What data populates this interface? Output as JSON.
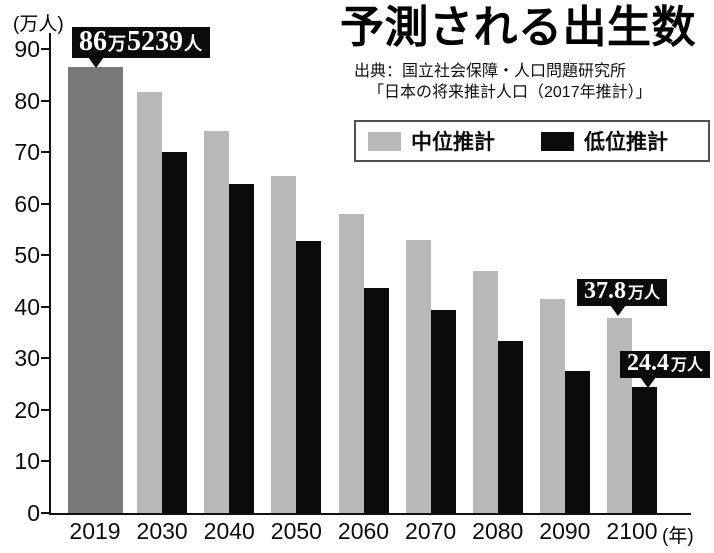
{
  "header": {
    "title": "予測される出生数",
    "source_line1": "出典：国立社会保障・人口問題研究所",
    "source_line2": "「日本の将来推計人口（2017年推計）」"
  },
  "legend": {
    "medium": "中位推計",
    "low": "低位推計"
  },
  "axes": {
    "y_unit": "(万人)",
    "x_unit": "(年)"
  },
  "callouts": {
    "actual_2019": {
      "text": "86万5239人",
      "num1": "86",
      "unit1": "万",
      "num2": "5239",
      "unit2": "人"
    },
    "medium_2100": {
      "text": "37.8万人",
      "num": "37.8",
      "unit": "万人"
    },
    "low_2100": {
      "text": "24.4万人",
      "num": "24.4",
      "unit": "万人"
    }
  },
  "colors": {
    "actual_bar": "#787878",
    "medium_bar": "#b9b9b9",
    "low_bar": "#0b0b0b",
    "axis": "#111111",
    "callout_bg": "#0b0b0b",
    "callout_text": "#ffffff"
  },
  "chart_data": {
    "type": "bar",
    "title": "予測される出生数",
    "categories": [
      "2019",
      "2030",
      "2040",
      "2050",
      "2060",
      "2070",
      "2080",
      "2090",
      "2100"
    ],
    "series": [
      {
        "name": "中位推計",
        "role": "medium",
        "values": [
          86.5239,
          81.6,
          74.1,
          65.3,
          58.0,
          52.9,
          46.9,
          41.5,
          37.8
        ]
      },
      {
        "name": "低位推計",
        "role": "low",
        "values": [
          null,
          70.1,
          63.9,
          52.7,
          43.6,
          39.4,
          33.3,
          27.6,
          24.4
        ]
      }
    ],
    "ylabel": "(万人)",
    "xlabel": "(年)",
    "ylim": [
      0,
      90
    ],
    "yticks": [
      0,
      10,
      20,
      30,
      40,
      50,
      60,
      70,
      80,
      90
    ],
    "grid": false,
    "legend_position": "top-right",
    "annotations": [
      {
        "target": "2019 bar",
        "text": "86万5239人"
      },
      {
        "target": "2100 中位推計 bar",
        "text": "37.8万人"
      },
      {
        "target": "2100 低位推計 bar",
        "text": "24.4万人"
      }
    ],
    "note": "2019 is a single wide dark-gray bar; later years have paired gray (中位) and black (低位) bars"
  }
}
